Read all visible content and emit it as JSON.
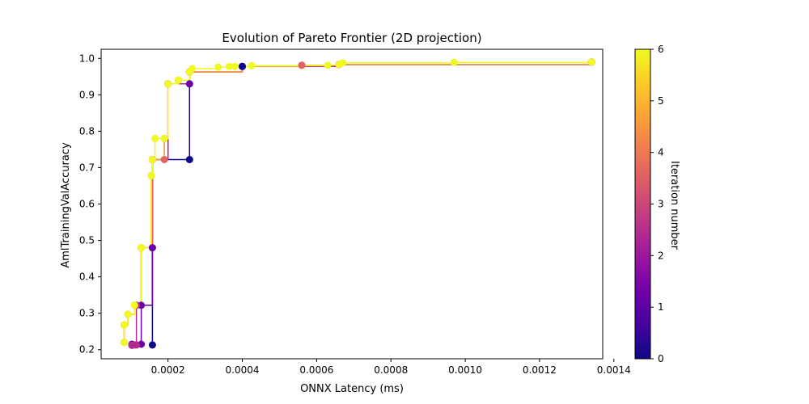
{
  "chart_data": {
    "type": "line",
    "title": "Evolution of Pareto Frontier (2D projection)",
    "xlabel": "ONNX Latency (ms)",
    "ylabel": "AmlTrainingValAccuracy",
    "xlim": [
      2e-05,
      0.00137
    ],
    "ylim": [
      0.175,
      1.025
    ],
    "x_ticks": [
      {
        "value": 0.0002,
        "label": "0.0002"
      },
      {
        "value": 0.0004,
        "label": "0.0004"
      },
      {
        "value": 0.0006,
        "label": "0.0006"
      },
      {
        "value": 0.0008,
        "label": "0.0008"
      },
      {
        "value": 0.001,
        "label": "0.0010"
      },
      {
        "value": 0.0012,
        "label": "0.0012"
      },
      {
        "value": 0.0014,
        "label": "0.0014"
      }
    ],
    "y_ticks": [
      {
        "value": 0.2,
        "label": "0.2"
      },
      {
        "value": 0.3,
        "label": "0.3"
      },
      {
        "value": 0.4,
        "label": "0.4"
      },
      {
        "value": 0.5,
        "label": "0.5"
      },
      {
        "value": 0.6,
        "label": "0.6"
      },
      {
        "value": 0.7,
        "label": "0.7"
      },
      {
        "value": 0.8,
        "label": "0.8"
      },
      {
        "value": 0.9,
        "label": "0.9"
      },
      {
        "value": 1.0,
        "label": "1.0"
      }
    ],
    "grid": false,
    "colorbar": {
      "label": "Iteration number",
      "range": [
        0,
        6
      ],
      "ticks": [
        "0",
        "1",
        "2",
        "3",
        "4",
        "5",
        "6"
      ],
      "colormap": "plasma"
    },
    "series": [
      {
        "iteration": 0,
        "color": "#0d0887",
        "points": [
          [
            0.000158,
            0.213
          ],
          [
            0.000158,
            0.722
          ],
          [
            0.000258,
            0.722
          ],
          [
            0.000258,
            0.963
          ],
          [
            0.0004,
            0.978
          ],
          [
            0.00066,
            0.983
          ],
          [
            0.00134,
            0.99
          ]
        ]
      },
      {
        "iteration": 1,
        "color": "#6a00a8",
        "points": [
          [
            0.000103,
            0.212
          ],
          [
            0.000103,
            0.215
          ],
          [
            0.000128,
            0.215
          ],
          [
            0.000128,
            0.322
          ],
          [
            0.000158,
            0.48
          ],
          [
            0.000158,
            0.722
          ],
          [
            0.0002,
            0.93
          ],
          [
            0.000258,
            0.93
          ],
          [
            0.000258,
            0.963
          ],
          [
            0.0004,
            0.978
          ],
          [
            0.00066,
            0.983
          ],
          [
            0.00134,
            0.99
          ]
        ]
      },
      {
        "iteration": 2,
        "color": "#b12a90",
        "points": [
          [
            0.000103,
            0.212
          ],
          [
            0.00011,
            0.213
          ],
          [
            0.000115,
            0.213
          ],
          [
            0.000115,
            0.322
          ],
          [
            0.000128,
            0.48
          ],
          [
            0.000158,
            0.722
          ],
          [
            0.0002,
            0.93
          ],
          [
            0.000258,
            0.963
          ],
          [
            0.0004,
            0.978
          ],
          [
            0.00066,
            0.983
          ],
          [
            0.00134,
            0.99
          ]
        ]
      },
      {
        "iteration": 3,
        "color": "#e16462",
        "points": [
          [
            8.2e-05,
            0.22
          ],
          [
            8.2e-05,
            0.268
          ],
          [
            9.2e-05,
            0.297
          ],
          [
            0.00011,
            0.322
          ],
          [
            0.000128,
            0.48
          ],
          [
            0.000158,
            0.722
          ],
          [
            0.00019,
            0.722
          ],
          [
            0.00019,
            0.78
          ],
          [
            0.0002,
            0.93
          ],
          [
            0.000228,
            0.94
          ],
          [
            0.000258,
            0.963
          ],
          [
            0.0004,
            0.978
          ],
          [
            0.00056,
            0.981
          ],
          [
            0.00066,
            0.983
          ],
          [
            0.00134,
            0.99
          ]
        ]
      },
      {
        "iteration": 4,
        "color": "#fca636",
        "points": [
          [
            8.2e-05,
            0.22
          ],
          [
            8.2e-05,
            0.268
          ],
          [
            9.2e-05,
            0.297
          ],
          [
            0.00011,
            0.322
          ],
          [
            0.000128,
            0.48
          ],
          [
            0.000155,
            0.678
          ],
          [
            0.000158,
            0.722
          ],
          [
            0.00019,
            0.78
          ],
          [
            0.0002,
            0.93
          ],
          [
            0.000228,
            0.94
          ],
          [
            0.000258,
            0.963
          ],
          [
            0.0004,
            0.978
          ],
          [
            0.00056,
            0.981
          ],
          [
            0.00066,
            0.983
          ],
          [
            0.00134,
            0.99
          ]
        ]
      },
      {
        "iteration": 6,
        "color": "#f0f921",
        "points": [
          [
            8.2e-05,
            0.22
          ],
          [
            8.2e-05,
            0.268
          ],
          [
            9.2e-05,
            0.297
          ],
          [
            0.00011,
            0.322
          ],
          [
            0.000128,
            0.48
          ],
          [
            0.000155,
            0.678
          ],
          [
            0.000158,
            0.722
          ],
          [
            0.000165,
            0.78
          ],
          [
            0.00019,
            0.78
          ],
          [
            0.0002,
            0.93
          ],
          [
            0.000228,
            0.94
          ],
          [
            0.000258,
            0.963
          ],
          [
            0.000265,
            0.972
          ],
          [
            0.000335,
            0.976
          ],
          [
            0.000365,
            0.978
          ],
          [
            0.00038,
            0.978
          ],
          [
            0.000425,
            0.98
          ],
          [
            0.00063,
            0.981
          ],
          [
            0.00066,
            0.983
          ],
          [
            0.00067,
            0.988
          ],
          [
            0.00097,
            0.989
          ],
          [
            0.00134,
            0.99
          ]
        ]
      }
    ],
    "highlight_points": [
      {
        "iteration": 0,
        "color": "#0d0887",
        "point": [
          0.0004,
          0.978
        ]
      },
      {
        "iteration": 3,
        "color": "#e16462",
        "point": [
          0.00056,
          0.981
        ]
      }
    ]
  }
}
